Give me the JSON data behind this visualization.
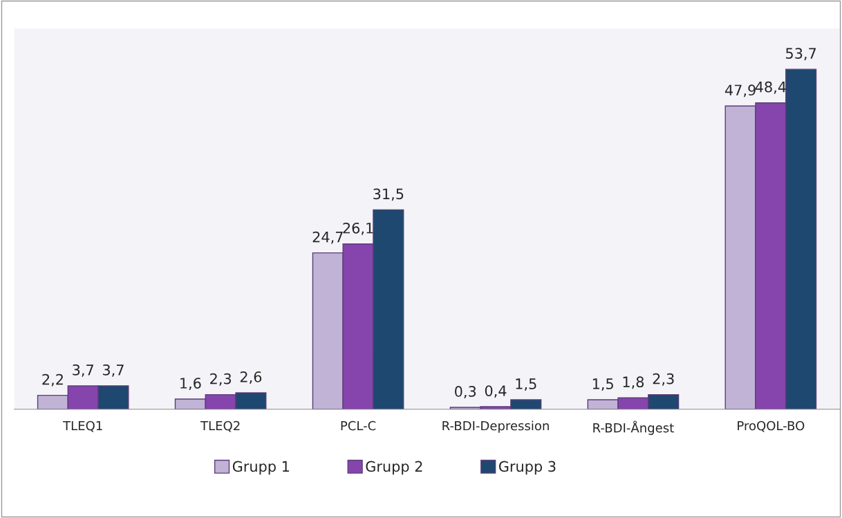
{
  "chart_data": {
    "type": "bar",
    "categories": [
      "TLEQ1",
      "TLEQ2",
      "PCL-C",
      "R-BDI-Depression",
      "R-BDI-Ångest",
      "ProQOL-BO"
    ],
    "series": [
      {
        "name": "Grupp 1",
        "color": "#c0b3d6",
        "values": [
          2.2,
          1.6,
          24.7,
          0.3,
          1.5,
          47.9
        ],
        "value_labels": [
          "2,2",
          "1,6",
          "24,7",
          "0,3",
          "1,5",
          "47,9"
        ]
      },
      {
        "name": "Grupp 2",
        "color": "#8645ad",
        "values": [
          3.7,
          2.3,
          26.1,
          0.4,
          1.8,
          48.4
        ],
        "value_labels": [
          "3,7",
          "2,3",
          "26,1",
          "0,4",
          "1,8",
          "48,4"
        ]
      },
      {
        "name": "Grupp 3",
        "color": "#1f4870",
        "values": [
          3.7,
          2.6,
          31.5,
          1.5,
          2.3,
          53.7
        ],
        "value_labels": [
          "3,7",
          "2,6",
          "31,5",
          "1,5",
          "2,3",
          "53,7"
        ]
      }
    ],
    "legend": "bottom",
    "grid": false
  }
}
